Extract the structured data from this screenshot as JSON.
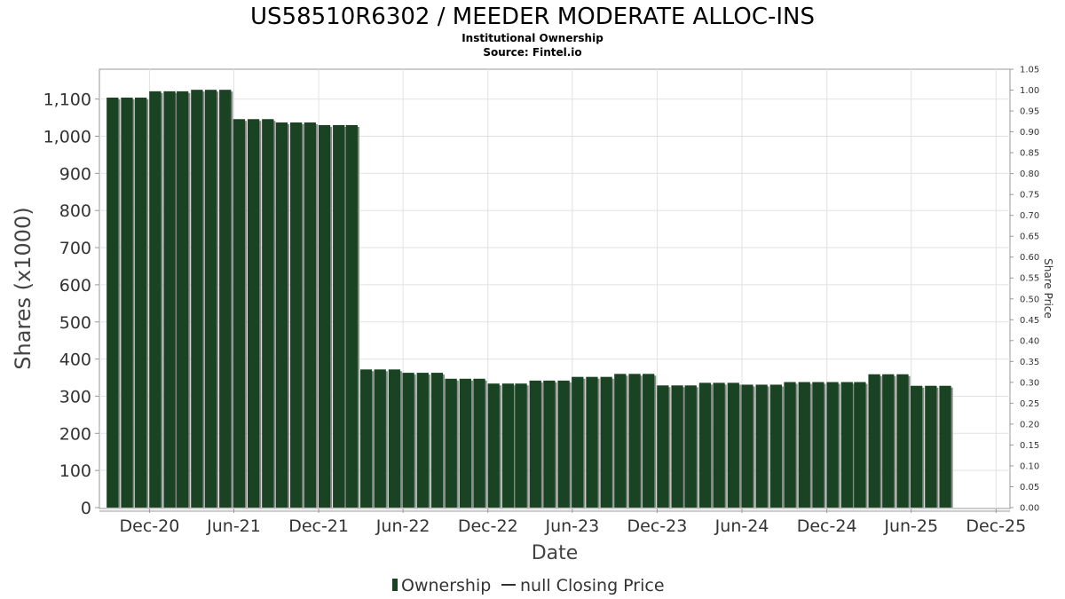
{
  "chart_data": {
    "type": "bar",
    "title": "US58510R6302 / MEEDER MODERATE ALLOC-INS",
    "subtitle_line1": "Institutional Ownership",
    "subtitle_line2": "Source: Fintel.io",
    "xlabel": "Date",
    "ylabel": "Shares (x1000)",
    "y2label": "Share Price",
    "ylim": [
      0,
      1200
    ],
    "y2lim": [
      0,
      1.05
    ],
    "xlim": [
      "2020-08-15",
      "2025-12-31"
    ],
    "yticks": [
      {
        "v": 0,
        "label": "0"
      },
      {
        "v": 100,
        "label": "100"
      },
      {
        "v": 200,
        "label": "200"
      },
      {
        "v": 300,
        "label": "300"
      },
      {
        "v": 400,
        "label": "400"
      },
      {
        "v": 500,
        "label": "500"
      },
      {
        "v": 600,
        "label": "600"
      },
      {
        "v": 700,
        "label": "700"
      },
      {
        "v": 800,
        "label": "800"
      },
      {
        "v": 900,
        "label": "900"
      },
      {
        "v": 1000,
        "label": "1,000"
      },
      {
        "v": 1100,
        "label": "1,100"
      }
    ],
    "y2ticks": [
      "0.00",
      "0.05",
      "0.10",
      "0.15",
      "0.20",
      "0.25",
      "0.30",
      "0.35",
      "0.40",
      "0.45",
      "0.50",
      "0.55",
      "0.60",
      "0.65",
      "0.70",
      "0.75",
      "0.80",
      "0.85",
      "0.90",
      "0.95",
      "1.00",
      "1.05"
    ],
    "xticks": [
      {
        "date": "2020-12-01",
        "label": "Dec-20"
      },
      {
        "date": "2021-06-01",
        "label": "Jun-21"
      },
      {
        "date": "2021-12-01",
        "label": "Dec-21"
      },
      {
        "date": "2022-06-01",
        "label": "Jun-22"
      },
      {
        "date": "2022-12-01",
        "label": "Dec-22"
      },
      {
        "date": "2023-06-01",
        "label": "Jun-23"
      },
      {
        "date": "2023-12-01",
        "label": "Dec-23"
      },
      {
        "date": "2024-06-01",
        "label": "Jun-24"
      },
      {
        "date": "2024-12-01",
        "label": "Dec-24"
      },
      {
        "date": "2025-06-01",
        "label": "Jun-25"
      },
      {
        "date": "2025-12-01",
        "label": "Dec-25"
      }
    ],
    "grid": true,
    "legend_position": "bottom-center",
    "series": [
      {
        "name": "Ownership",
        "color": "#1a4324",
        "x": [
          "2020-09-30",
          "2020-10-31",
          "2020-11-30",
          "2020-12-31",
          "2021-01-31",
          "2021-02-28",
          "2021-03-31",
          "2021-04-30",
          "2021-05-31",
          "2021-06-30",
          "2021-07-31",
          "2021-08-31",
          "2021-09-30",
          "2021-10-31",
          "2021-11-30",
          "2021-12-31",
          "2022-01-31",
          "2022-02-28",
          "2022-03-31",
          "2022-04-30",
          "2022-05-31",
          "2022-06-30",
          "2022-07-31",
          "2022-08-31",
          "2022-09-30",
          "2022-10-31",
          "2022-11-30",
          "2022-12-31",
          "2023-01-31",
          "2023-02-28",
          "2023-03-31",
          "2023-04-30",
          "2023-05-31",
          "2023-06-30",
          "2023-07-31",
          "2023-08-31",
          "2023-09-30",
          "2023-10-31",
          "2023-11-30",
          "2023-12-31",
          "2024-01-31",
          "2024-02-29",
          "2024-03-31",
          "2024-04-30",
          "2024-05-31",
          "2024-06-30",
          "2024-07-31",
          "2024-08-31",
          "2024-09-30",
          "2024-10-31",
          "2024-11-30",
          "2024-12-31",
          "2025-01-31",
          "2025-02-28",
          "2025-03-31",
          "2025-04-30",
          "2025-05-31",
          "2025-06-30",
          "2025-07-31",
          "2025-08-31"
        ],
        "values": [
          1104,
          1104,
          1104,
          1121,
          1121,
          1121,
          1125,
          1125,
          1125,
          1046,
          1046,
          1046,
          1037,
          1037,
          1037,
          1030,
          1030,
          1030,
          372,
          372,
          372,
          363,
          363,
          363,
          347,
          347,
          347,
          334,
          334,
          334,
          342,
          342,
          342,
          352,
          352,
          352,
          360,
          360,
          360,
          329,
          329,
          329,
          336,
          336,
          336,
          331,
          331,
          331,
          338,
          338,
          338,
          338,
          338,
          338,
          359,
          359,
          359,
          328,
          328,
          328
        ]
      },
      {
        "name": "null Closing Price",
        "color": "#333333",
        "values": []
      }
    ]
  }
}
